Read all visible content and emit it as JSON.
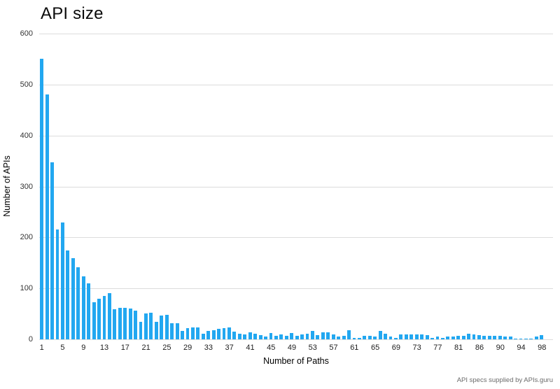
{
  "page": {
    "title": "API size",
    "attribution": "API specs supplied by APIs.guru"
  },
  "colors": {
    "bar": "#22a7f0",
    "gridline": "#dcdcdc",
    "axis_tick_text": "#333333",
    "title_text": "#0b0b0b",
    "attribution_text": "#6b6b6b",
    "background": "#ffffff"
  },
  "chart_data": {
    "type": "bar",
    "title": "API size",
    "xlabel": "Number of Paths",
    "ylabel": "Number of APIs",
    "ylim": [
      0,
      600
    ],
    "y_ticks": [
      0,
      100,
      200,
      300,
      400,
      500,
      600
    ],
    "grid": "horizontal",
    "legend": "none",
    "x_tick_label_every": 4,
    "x_tick_labels_shown": [
      1,
      5,
      9,
      13,
      17,
      21,
      25,
      29,
      33,
      37,
      41,
      45,
      49,
      53,
      57,
      61,
      65,
      69,
      73,
      77,
      81,
      86,
      90,
      94,
      98
    ],
    "categories": [
      1,
      2,
      3,
      4,
      5,
      6,
      7,
      8,
      9,
      10,
      11,
      12,
      13,
      14,
      15,
      16,
      17,
      18,
      19,
      20,
      21,
      22,
      23,
      24,
      25,
      26,
      27,
      28,
      29,
      30,
      31,
      32,
      33,
      34,
      35,
      36,
      37,
      38,
      39,
      40,
      41,
      42,
      43,
      44,
      45,
      46,
      47,
      48,
      49,
      50,
      51,
      52,
      53,
      54,
      55,
      56,
      57,
      58,
      59,
      60,
      61,
      62,
      63,
      64,
      65,
      66,
      67,
      68,
      69,
      70,
      71,
      72,
      73,
      74,
      75,
      76,
      77,
      78,
      79,
      80,
      81,
      82,
      83,
      84,
      86,
      87,
      88,
      89,
      90,
      91,
      92,
      93,
      94,
      95,
      96,
      97,
      98
    ],
    "values": [
      550,
      481,
      347,
      216,
      229,
      175,
      159,
      141,
      124,
      110,
      73,
      79,
      85,
      90,
      59,
      62,
      62,
      60,
      57,
      35,
      51,
      52,
      35,
      47,
      48,
      32,
      31,
      16,
      22,
      24,
      23,
      11,
      16,
      18,
      20,
      22,
      23,
      15,
      11,
      10,
      14,
      11,
      8,
      5,
      12,
      7,
      10,
      7,
      12,
      7,
      10,
      11,
      16,
      8,
      14,
      14,
      10,
      5,
      7,
      18,
      3,
      3,
      7,
      7,
      6,
      17,
      11,
      6,
      3,
      10,
      10,
      10,
      10,
      9,
      8,
      3,
      6,
      3,
      5,
      6,
      7,
      7,
      11,
      9,
      8,
      7,
      7,
      7,
      7,
      6,
      5,
      1,
      1,
      1,
      1,
      6,
      8
    ]
  }
}
